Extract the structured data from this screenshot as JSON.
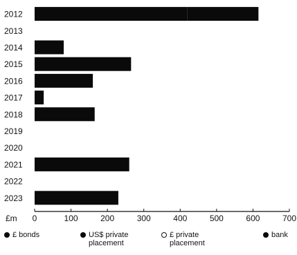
{
  "chart_data": {
    "type": "bar",
    "orientation": "horizontal",
    "stacked": true,
    "categories": [
      "2012",
      "2013",
      "2014",
      "2015",
      "2016",
      "2017",
      "2018",
      "2019",
      "2020",
      "2021",
      "2022",
      "2023"
    ],
    "series": [
      {
        "name": "£ bonds",
        "values": [
          420,
          0,
          0,
          0,
          0,
          0,
          0,
          0,
          0,
          0,
          0,
          0
        ],
        "color": "#0a0a0a"
      },
      {
        "name": "US$ private placement",
        "values": [
          0,
          0,
          0,
          265,
          0,
          0,
          0,
          0,
          0,
          0,
          0,
          230
        ],
        "color": "#0a0a0a"
      },
      {
        "name": "£ private placement",
        "values": [
          0,
          0,
          0,
          0,
          0,
          0,
          0,
          0,
          0,
          0,
          0,
          0
        ],
        "color": "#ffffff"
      },
      {
        "name": "bank",
        "values": [
          195,
          0,
          80,
          0,
          160,
          25,
          165,
          0,
          0,
          260,
          0,
          0
        ],
        "color": "#0a0a0a"
      }
    ],
    "xlabel": "£m",
    "xlim": [
      0,
      700
    ],
    "xticks": [
      "0",
      "100",
      "200",
      "300",
      "400",
      "500",
      "600",
      "700"
    ],
    "grid": false,
    "legend_position": "bottom"
  }
}
